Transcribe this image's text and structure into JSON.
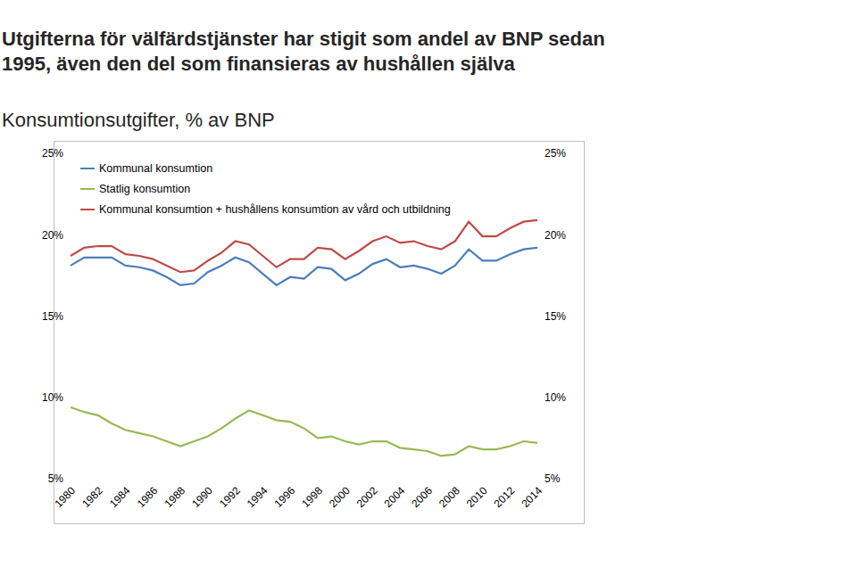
{
  "chart_data": {
    "type": "line",
    "title": "Utgifterna för välfärdstjänster har stigit som andel av BNP sedan 1995, även den del som finansieras av hushållen själva",
    "subtitle": "Konsumtionsutgifter, % av BNP",
    "categories": [
      "1980",
      null,
      "1982",
      null,
      "1984",
      null,
      "1986",
      null,
      "1988",
      null,
      "1990",
      null,
      "1992",
      null,
      "1994",
      null,
      "1996",
      null,
      "1998",
      null,
      "2000",
      null,
      "2002",
      null,
      "2004",
      null,
      "2006",
      null,
      "2008",
      null,
      "2010",
      null,
      "2012",
      null,
      "2014"
    ],
    "series": [
      {
        "name": "Kommunal konsumtion",
        "color": "#4a7ebb",
        "values": [
          18.1,
          18.6,
          18.6,
          18.6,
          18.1,
          18.0,
          17.8,
          17.4,
          16.9,
          17.0,
          17.7,
          18.1,
          18.6,
          18.3,
          17.6,
          16.9,
          17.4,
          17.3,
          18.0,
          17.9,
          17.2,
          17.6,
          18.2,
          18.5,
          18.0,
          18.1,
          17.9,
          17.6,
          18.1,
          19.1,
          18.4,
          18.4,
          18.8,
          19.1,
          19.2
        ]
      },
      {
        "name": "Statlig konsumtion",
        "color": "#98b954",
        "values": [
          9.4,
          9.1,
          8.9,
          8.4,
          8.0,
          7.8,
          7.6,
          7.3,
          7.0,
          7.3,
          7.6,
          8.1,
          8.7,
          9.2,
          8.9,
          8.6,
          8.5,
          8.1,
          7.5,
          7.6,
          7.3,
          7.1,
          7.3,
          7.3,
          6.9,
          6.8,
          6.7,
          6.4,
          6.5,
          7.0,
          6.8,
          6.8,
          7.0,
          7.3,
          7.2
        ]
      },
      {
        "name": "Kommunal konsumtion + hushållens konsumtion av vård och utbildning",
        "color": "#be4b48",
        "values": [
          18.7,
          19.2,
          19.3,
          19.3,
          18.8,
          18.7,
          18.5,
          18.1,
          17.7,
          17.8,
          18.4,
          18.9,
          19.6,
          19.4,
          18.7,
          18.0,
          18.5,
          18.5,
          19.2,
          19.1,
          18.5,
          19.0,
          19.6,
          19.9,
          19.5,
          19.6,
          19.3,
          19.1,
          19.6,
          20.8,
          19.9,
          19.9,
          20.4,
          20.8,
          20.9
        ]
      }
    ],
    "ylim": [
      5,
      25
    ],
    "yticks": [
      {
        "value": 5,
        "label": "5%"
      },
      {
        "value": 10,
        "label": "10%"
      },
      {
        "value": 15,
        "label": "15%"
      },
      {
        "value": 20,
        "label": "20%"
      },
      {
        "value": 25,
        "label": "25%"
      }
    ],
    "y2lim": [
      5,
      25
    ],
    "y2ticks": [
      {
        "value": 5,
        "label": "5%"
      },
      {
        "value": 10,
        "label": "10%"
      },
      {
        "value": 15,
        "label": "15%"
      },
      {
        "value": 20,
        "label": "20%"
      },
      {
        "value": 25,
        "label": "25%"
      }
    ],
    "grid": false,
    "legend": "upper left"
  }
}
